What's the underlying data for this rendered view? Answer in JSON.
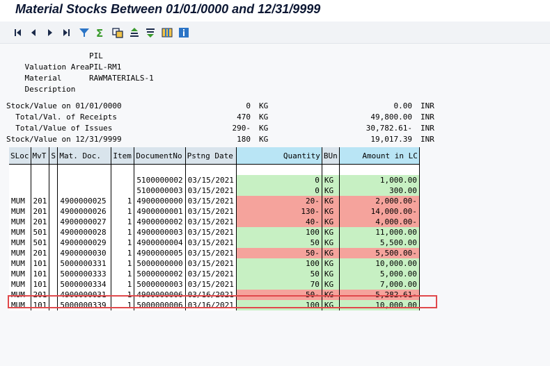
{
  "title": "Material Stocks Between 01/01/0000 and 12/31/9999",
  "toolbar": {
    "buttons": [
      {
        "name": "first-page-icon",
        "glyph": "⏮"
      },
      {
        "name": "previous-page-icon",
        "glyph": "◀"
      },
      {
        "name": "next-page-icon",
        "glyph": "▶"
      },
      {
        "name": "last-page-icon",
        "glyph": "⏭"
      },
      {
        "name": "filter-icon",
        "glyph": "▼"
      },
      {
        "name": "sum-icon",
        "glyph": "Σ"
      },
      {
        "name": "subtotal-icon",
        "glyph": "⧉"
      },
      {
        "name": "sort-ascending-icon",
        "glyph": "⇈"
      },
      {
        "name": "sort-descending-icon",
        "glyph": "⇊"
      },
      {
        "name": "layout-icon",
        "glyph": "▦"
      },
      {
        "name": "info-icon",
        "glyph": "i"
      }
    ]
  },
  "header": {
    "valuation_area_label": "Valuation Area",
    "valuation_area": "PIL",
    "material_label": "Material",
    "material": "PIL-RM1",
    "description_label": "Description",
    "description": "RAWMATERIALS-1"
  },
  "summary": [
    {
      "label": "Stock/Value on 01/01/0000",
      "qty": "0",
      "unit": "KG",
      "value": "0.00",
      "currency": "INR"
    },
    {
      "label": "  Total/Val. of Receipts",
      "qty": "470",
      "unit": "KG",
      "value": "49,800.00",
      "currency": "INR"
    },
    {
      "label": "  Total/Value of Issues",
      "qty": "290-",
      "unit": "KG",
      "value": "30,782.61-",
      "currency": "INR"
    },
    {
      "label": "Stock/Value on 12/31/9999",
      "qty": "180",
      "unit": "KG",
      "value": "19,017.39",
      "currency": "INR"
    }
  ],
  "table": {
    "columns": [
      "SLoc",
      "MvT",
      "S",
      "Mat. Doc.",
      "Item",
      "DocumentNo",
      "Pstng Date",
      "Quantity",
      "BUn",
      "Amount in LC"
    ],
    "rows": [
      {
        "sloc": "",
        "mvt": "",
        "s": "",
        "matdoc": "",
        "item": "",
        "docno": "",
        "date": "",
        "qty": "",
        "bun": "",
        "amount": "",
        "color": "none"
      },
      {
        "sloc": "",
        "mvt": "",
        "s": "",
        "matdoc": "",
        "item": "",
        "docno": "5100000002",
        "date": "03/15/2021",
        "qty": "0",
        "bun": "KG",
        "amount": "1,000.00",
        "color": "green"
      },
      {
        "sloc": "",
        "mvt": "",
        "s": "",
        "matdoc": "",
        "item": "",
        "docno": "5100000003",
        "date": "03/15/2021",
        "qty": "0",
        "bun": "KG",
        "amount": "300.00",
        "color": "green"
      },
      {
        "sloc": "MUM",
        "mvt": "201",
        "s": "",
        "matdoc": "4900000025",
        "item": "1",
        "docno": "4900000000",
        "date": "03/15/2021",
        "qty": "20-",
        "bun": "KG",
        "amount": "2,000.00-",
        "color": "red"
      },
      {
        "sloc": "MUM",
        "mvt": "201",
        "s": "",
        "matdoc": "4900000026",
        "item": "1",
        "docno": "4900000001",
        "date": "03/15/2021",
        "qty": "130-",
        "bun": "KG",
        "amount": "14,000.00-",
        "color": "red"
      },
      {
        "sloc": "MUM",
        "mvt": "201",
        "s": "",
        "matdoc": "4900000027",
        "item": "1",
        "docno": "4900000002",
        "date": "03/15/2021",
        "qty": "40-",
        "bun": "KG",
        "amount": "4,000.00-",
        "color": "red"
      },
      {
        "sloc": "MUM",
        "mvt": "501",
        "s": "",
        "matdoc": "4900000028",
        "item": "1",
        "docno": "4900000003",
        "date": "03/15/2021",
        "qty": "100",
        "bun": "KG",
        "amount": "11,000.00",
        "color": "green"
      },
      {
        "sloc": "MUM",
        "mvt": "501",
        "s": "",
        "matdoc": "4900000029",
        "item": "1",
        "docno": "4900000004",
        "date": "03/15/2021",
        "qty": "50",
        "bun": "KG",
        "amount": "5,500.00",
        "color": "green"
      },
      {
        "sloc": "MUM",
        "mvt": "201",
        "s": "",
        "matdoc": "4900000030",
        "item": "1",
        "docno": "4900000005",
        "date": "03/15/2021",
        "qty": "50-",
        "bun": "KG",
        "amount": "5,500.00-",
        "color": "red"
      },
      {
        "sloc": "MUM",
        "mvt": "101",
        "s": "",
        "matdoc": "5000000331",
        "item": "1",
        "docno": "5000000000",
        "date": "03/15/2021",
        "qty": "100",
        "bun": "KG",
        "amount": "10,000.00",
        "color": "green"
      },
      {
        "sloc": "MUM",
        "mvt": "101",
        "s": "",
        "matdoc": "5000000333",
        "item": "1",
        "docno": "5000000002",
        "date": "03/15/2021",
        "qty": "50",
        "bun": "KG",
        "amount": "5,000.00",
        "color": "green"
      },
      {
        "sloc": "MUM",
        "mvt": "101",
        "s": "",
        "matdoc": "5000000334",
        "item": "1",
        "docno": "5000000003",
        "date": "03/15/2021",
        "qty": "70",
        "bun": "KG",
        "amount": "7,000.00",
        "color": "green"
      },
      {
        "sloc": "MUM",
        "mvt": "201",
        "s": "",
        "matdoc": "4900000031",
        "item": "1",
        "docno": "4900000006",
        "date": "03/16/2021",
        "qty": "50-",
        "bun": "KG",
        "amount": "5,282.61-",
        "color": "red"
      },
      {
        "sloc": "MUM",
        "mvt": "101",
        "s": "",
        "matdoc": "5000000339",
        "item": "1",
        "docno": "5000000006",
        "date": "03/16/2021",
        "qty": "100",
        "bun": "KG",
        "amount": "10,000.00",
        "color": "green"
      }
    ]
  },
  "colors": {
    "positive": "#c7f0c3",
    "negative": "#f5a39c",
    "highlight_border": "#e0484b"
  }
}
